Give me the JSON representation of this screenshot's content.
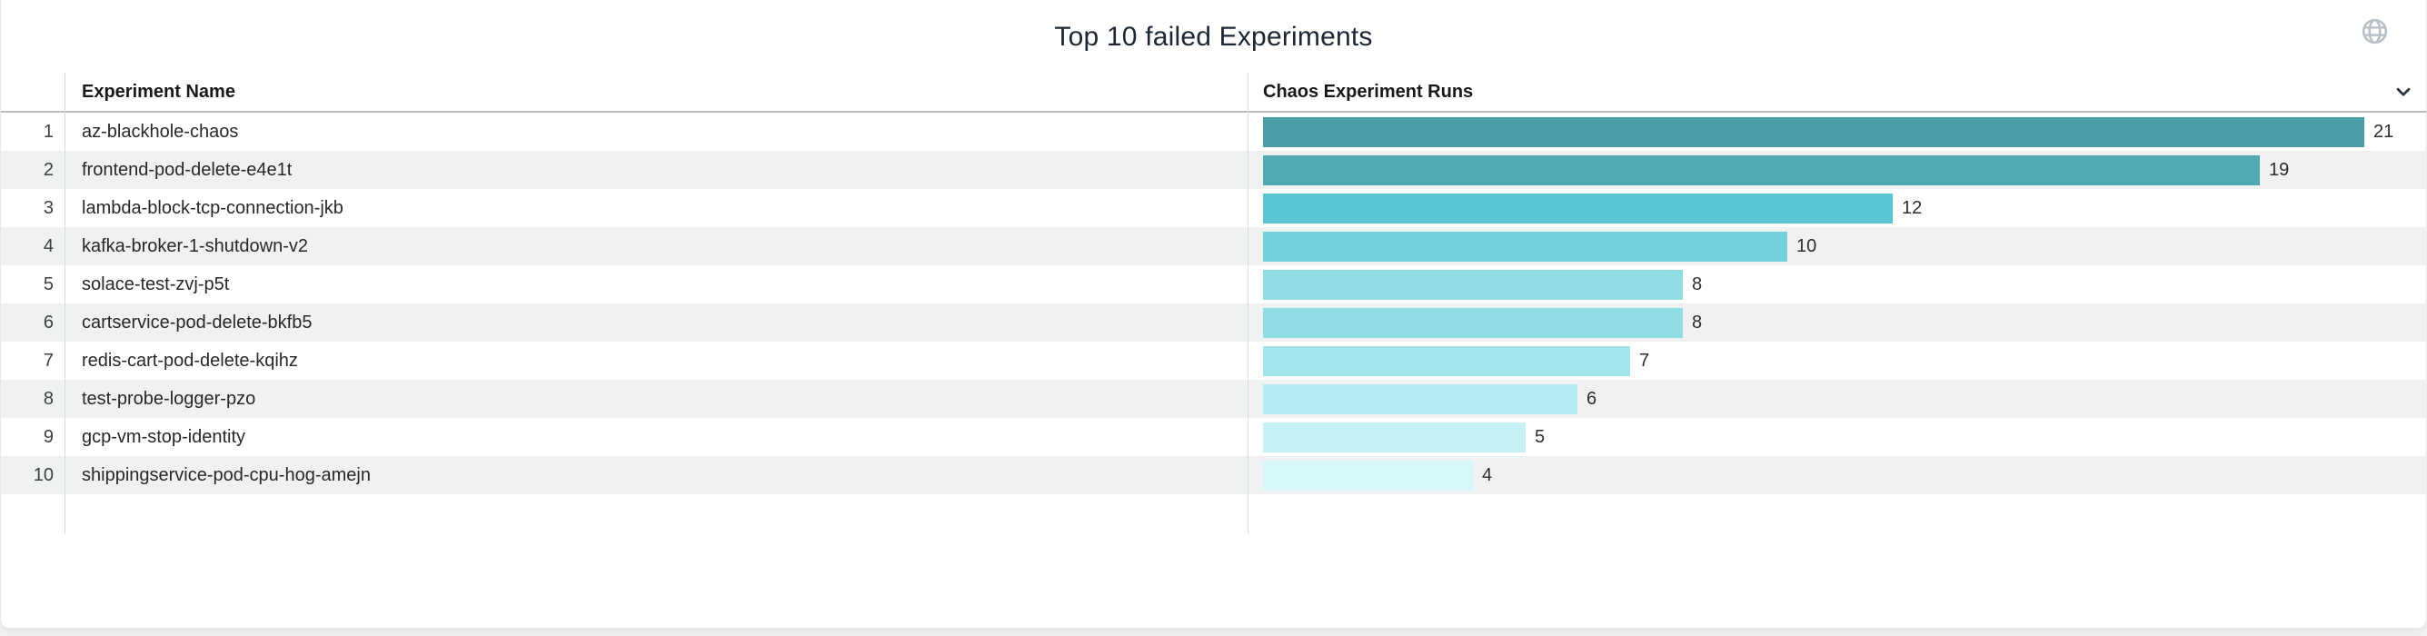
{
  "panel": {
    "title": "Top 10 failed Experiments",
    "icons": {
      "top_right": "globe-icon",
      "runs_column_sort": "chevron-down-icon"
    },
    "colors": {
      "title_text": "#1c2634",
      "header_text": "#16181a",
      "row_stripe": "#f0f1f1",
      "header_border": "#b9bec2",
      "column_divider": "#d7dadc",
      "icon_gray": "#b9c0c8",
      "chevron_dark": "#2b3440"
    }
  },
  "table": {
    "columns": [
      {
        "label": "Experiment Name"
      },
      {
        "label": "Chaos Experiment Runs"
      }
    ],
    "rows": [
      {
        "rank": "1",
        "name": "az-blackhole-chaos",
        "runs": 21,
        "bar_color": "#4a9ea7"
      },
      {
        "rank": "2",
        "name": "frontend-pod-delete-e4e1t",
        "runs": 19,
        "bar_color": "#4fa8b2"
      },
      {
        "rank": "3",
        "name": "lambda-block-tcp-connection-jkb",
        "runs": 12,
        "bar_color": "#5bc6d3"
      },
      {
        "rank": "4",
        "name": "kafka-broker-1-shutdown-v2",
        "runs": 10,
        "bar_color": "#74d0da"
      },
      {
        "rank": "5",
        "name": "solace-test-zvj-p5t",
        "runs": 8,
        "bar_color": "#90dde5"
      },
      {
        "rank": "6",
        "name": "cartservice-pod-delete-bkfb5",
        "runs": 8,
        "bar_color": "#90dde5"
      },
      {
        "rank": "7",
        "name": "redis-cart-pod-delete-kqihz",
        "runs": 7,
        "bar_color": "#a3e5eb"
      },
      {
        "rank": "8",
        "name": "test-probe-logger-pzo",
        "runs": 6,
        "bar_color": "#b6ecf1"
      },
      {
        "rank": "9",
        "name": "gcp-vm-stop-identity",
        "runs": 5,
        "bar_color": "#c7f1f5"
      },
      {
        "rank": "10",
        "name": "shippingservice-pod-cpu-hog-amejn",
        "runs": 4,
        "bar_color": "#d6f6f9"
      }
    ]
  },
  "chart_data": {
    "type": "bar",
    "orientation": "horizontal",
    "title": "Top 10 failed Experiments",
    "xlabel": "Chaos Experiment Runs",
    "ylabel": "Experiment Name",
    "categories": [
      "az-blackhole-chaos",
      "frontend-pod-delete-e4e1t",
      "lambda-block-tcp-connection-jkb",
      "kafka-broker-1-shutdown-v2",
      "solace-test-zvj-p5t",
      "cartservice-pod-delete-bkfb5",
      "redis-cart-pod-delete-kqihz",
      "test-probe-logger-pzo",
      "gcp-vm-stop-identity",
      "shippingservice-pod-cpu-hog-amejn"
    ],
    "values": [
      21,
      19,
      12,
      10,
      8,
      8,
      7,
      6,
      5,
      4
    ],
    "data_labels": true,
    "xlim": [
      0,
      21
    ],
    "grid": false,
    "legend": false,
    "color_scale": [
      "#4a9ea7",
      "#d6f6f9"
    ]
  }
}
